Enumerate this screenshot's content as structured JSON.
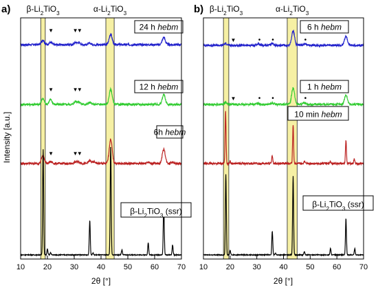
{
  "figure": {
    "ylabel": "Intensity [a.u.]",
    "xlabel": "2θ [°]",
    "xticks": [
      10,
      20,
      30,
      40,
      50,
      60,
      70
    ]
  },
  "chart_data": [
    {
      "type": "line",
      "panel_label": "a)",
      "xlabel": "2θ [°]",
      "ylabel": "Intensity [a.u.]",
      "xlim": [
        10,
        70
      ],
      "xticks": [
        10,
        20,
        30,
        40,
        50,
        60,
        70
      ],
      "bands": [
        {
          "label": "β-Li2TiO3",
          "x_range": [
            17.5,
            19.2
          ]
        },
        {
          "label": "α-Li2TiO3",
          "x_range": [
            41.8,
            44.9
          ]
        }
      ],
      "series": [
        {
          "name": "24 h hebm",
          "color": "#2222cc",
          "peaks": [
            {
              "x": 18.3,
              "h": 0.3
            },
            {
              "x": 21.2,
              "h": 0.15
            },
            {
              "x": 30.5,
              "h": 0.14
            },
            {
              "x": 31.8,
              "h": 0.12
            },
            {
              "x": 35.8,
              "h": 0.09
            },
            {
              "x": 43.6,
              "h": 0.7
            },
            {
              "x": 63.4,
              "h": 0.48
            }
          ],
          "markers": [
            {
              "x": 21.3,
              "symbol": "▼"
            },
            {
              "x": 30.4,
              "symbol": "▼"
            },
            {
              "x": 32.0,
              "symbol": "▼"
            }
          ]
        },
        {
          "name": "12 h hebm",
          "color": "#33cc33",
          "peaks": [
            {
              "x": 18.3,
              "h": 0.38
            },
            {
              "x": 21.2,
              "h": 0.32
            },
            {
              "x": 30.5,
              "h": 0.2
            },
            {
              "x": 31.8,
              "h": 0.16
            },
            {
              "x": 35.8,
              "h": 0.13
            },
            {
              "x": 43.6,
              "h": 1.0
            },
            {
              "x": 63.4,
              "h": 0.65
            }
          ],
          "markers": [
            {
              "x": 21.3,
              "symbol": "▼"
            },
            {
              "x": 30.4,
              "symbol": "▼"
            },
            {
              "x": 32.0,
              "symbol": "▼"
            }
          ]
        },
        {
          "name": "6h hebm",
          "color": "#bb2222",
          "peaks": [
            {
              "x": 18.3,
              "h": 0.52
            },
            {
              "x": 21.2,
              "h": 0.12
            },
            {
              "x": 30.6,
              "h": 0.1
            },
            {
              "x": 31.8,
              "h": 0.1
            },
            {
              "x": 35.8,
              "h": 0.18
            },
            {
              "x": 37.5,
              "h": 0.1
            },
            {
              "x": 43.6,
              "h": 1.6
            },
            {
              "x": 57.5,
              "h": 0.1
            },
            {
              "x": 63.4,
              "h": 0.95
            },
            {
              "x": 66.5,
              "h": 0.1
            }
          ],
          "markers": [
            {
              "x": 21.3,
              "symbol": "▼"
            },
            {
              "x": 30.4,
              "symbol": "▼"
            },
            {
              "x": 32.0,
              "symbol": "▼"
            }
          ]
        },
        {
          "name": "β-Li2TiO3 (ssr)",
          "color": "#000000",
          "peaks": [
            {
              "x": 18.4,
              "h": 5.3
            },
            {
              "x": 20.0,
              "h": 0.3
            },
            {
              "x": 21.2,
              "h": 0.12
            },
            {
              "x": 35.8,
              "h": 1.75
            },
            {
              "x": 37.0,
              "h": 0.1
            },
            {
              "x": 43.6,
              "h": 5.4
            },
            {
              "x": 47.8,
              "h": 0.25
            },
            {
              "x": 57.6,
              "h": 0.6
            },
            {
              "x": 63.4,
              "h": 2.65
            },
            {
              "x": 66.7,
              "h": 0.5
            }
          ],
          "markers": []
        }
      ]
    },
    {
      "type": "line",
      "panel_label": "b)",
      "xlabel": "2θ [°]",
      "xlim": [
        10,
        70
      ],
      "xticks": [
        10,
        20,
        30,
        40,
        50,
        60,
        70
      ],
      "bands": [
        {
          "label": "β-Li2TiO3",
          "x_range": [
            17.5,
            19.5
          ]
        },
        {
          "label": "α-Li2TiO3",
          "x_range": [
            41.4,
            45.1
          ]
        }
      ],
      "series": [
        {
          "name": "6 h hebm",
          "color": "#2222cc",
          "peaks": [
            {
              "x": 18.3,
              "h": 0.12
            },
            {
              "x": 30.5,
              "h": 0.08
            },
            {
              "x": 35.8,
              "h": 0.12
            },
            {
              "x": 43.6,
              "h": 0.95
            },
            {
              "x": 48.0,
              "h": 0.12
            },
            {
              "x": 63.4,
              "h": 0.6
            }
          ],
          "markers": [
            {
              "x": 21.2,
              "symbol": "▼"
            },
            {
              "x": 31.0,
              "symbol": "•"
            },
            {
              "x": 36.0,
              "symbol": "•"
            },
            {
              "x": 48.2,
              "symbol": "•"
            }
          ]
        },
        {
          "name": "1 h hebm",
          "color": "#33cc33",
          "peaks": [
            {
              "x": 18.3,
              "h": 0.12
            },
            {
              "x": 30.5,
              "h": 0.08
            },
            {
              "x": 35.8,
              "h": 0.08
            },
            {
              "x": 43.6,
              "h": 1.1
            },
            {
              "x": 48.0,
              "h": 0.1
            },
            {
              "x": 63.4,
              "h": 0.62
            }
          ],
          "markers": [
            {
              "x": 21.2,
              "symbol": "▼"
            },
            {
              "x": 31.0,
              "symbol": "•"
            },
            {
              "x": 36.0,
              "symbol": "•"
            },
            {
              "x": 48.2,
              "symbol": "•"
            }
          ]
        },
        {
          "name": "10 min hebm",
          "color": "#bb2222",
          "peaks": [
            {
              "x": 18.3,
              "h": 3.5
            },
            {
              "x": 20.0,
              "h": 0.15
            },
            {
              "x": 35.8,
              "h": 0.55
            },
            {
              "x": 43.6,
              "h": 2.6
            },
            {
              "x": 47.8,
              "h": 0.15
            },
            {
              "x": 57.6,
              "h": 0.15
            },
            {
              "x": 63.4,
              "h": 1.6
            },
            {
              "x": 66.5,
              "h": 0.3
            }
          ],
          "markers": []
        },
        {
          "name": "β-Li2TiO3 (ssr)",
          "color": "#000000",
          "peaks": [
            {
              "x": 18.4,
              "h": 3.8
            },
            {
              "x": 20.0,
              "h": 0.2
            },
            {
              "x": 35.8,
              "h": 1.1
            },
            {
              "x": 37.0,
              "h": 0.08
            },
            {
              "x": 43.6,
              "h": 3.7
            },
            {
              "x": 47.8,
              "h": 0.15
            },
            {
              "x": 57.6,
              "h": 0.3
            },
            {
              "x": 63.4,
              "h": 1.7
            },
            {
              "x": 66.7,
              "h": 0.3
            }
          ],
          "markers": []
        }
      ]
    }
  ]
}
